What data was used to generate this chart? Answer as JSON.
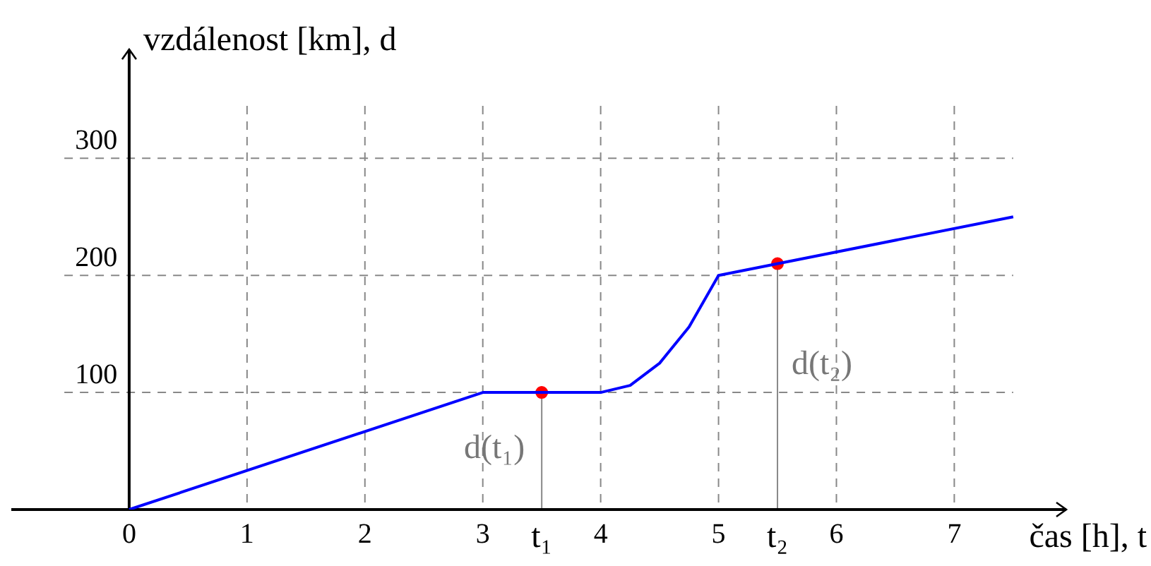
{
  "chart_data": {
    "type": "line",
    "xlabel": "čas [h], t",
    "ylabel": "vzdálenost [km], d",
    "xlim": [
      -1,
      7.95
    ],
    "ylim": [
      0,
      393
    ],
    "xticks": [
      0,
      1,
      2,
      3,
      4,
      5,
      6,
      7,
      {
        "value": 3.5,
        "label": "t₁"
      },
      {
        "value": 5.5,
        "label": "t₂"
      }
    ],
    "yticks": [
      100,
      200,
      300
    ],
    "grid": true,
    "series": [
      {
        "color": "#0000ff",
        "x": [
          0,
          3,
          4,
          4.25,
          4.5,
          4.75,
          5,
          7.5
        ],
        "values": [
          0,
          100,
          100,
          106,
          125,
          156,
          200,
          250
        ]
      },
      {
        "type": "scatter",
        "color": "#ff0000",
        "x": [
          3.5,
          5.5
        ],
        "values": [
          100,
          210
        ],
        "errors": [
          [
            0,
            100
          ],
          [
            0,
            210
          ]
        ],
        "marker": "circle"
      }
    ],
    "annotations": [
      {
        "text": "d(t₁)",
        "x": 3.5,
        "y": 100
      },
      {
        "text": "d(t₂)",
        "x": 5.5,
        "y": 210
      }
    ]
  }
}
